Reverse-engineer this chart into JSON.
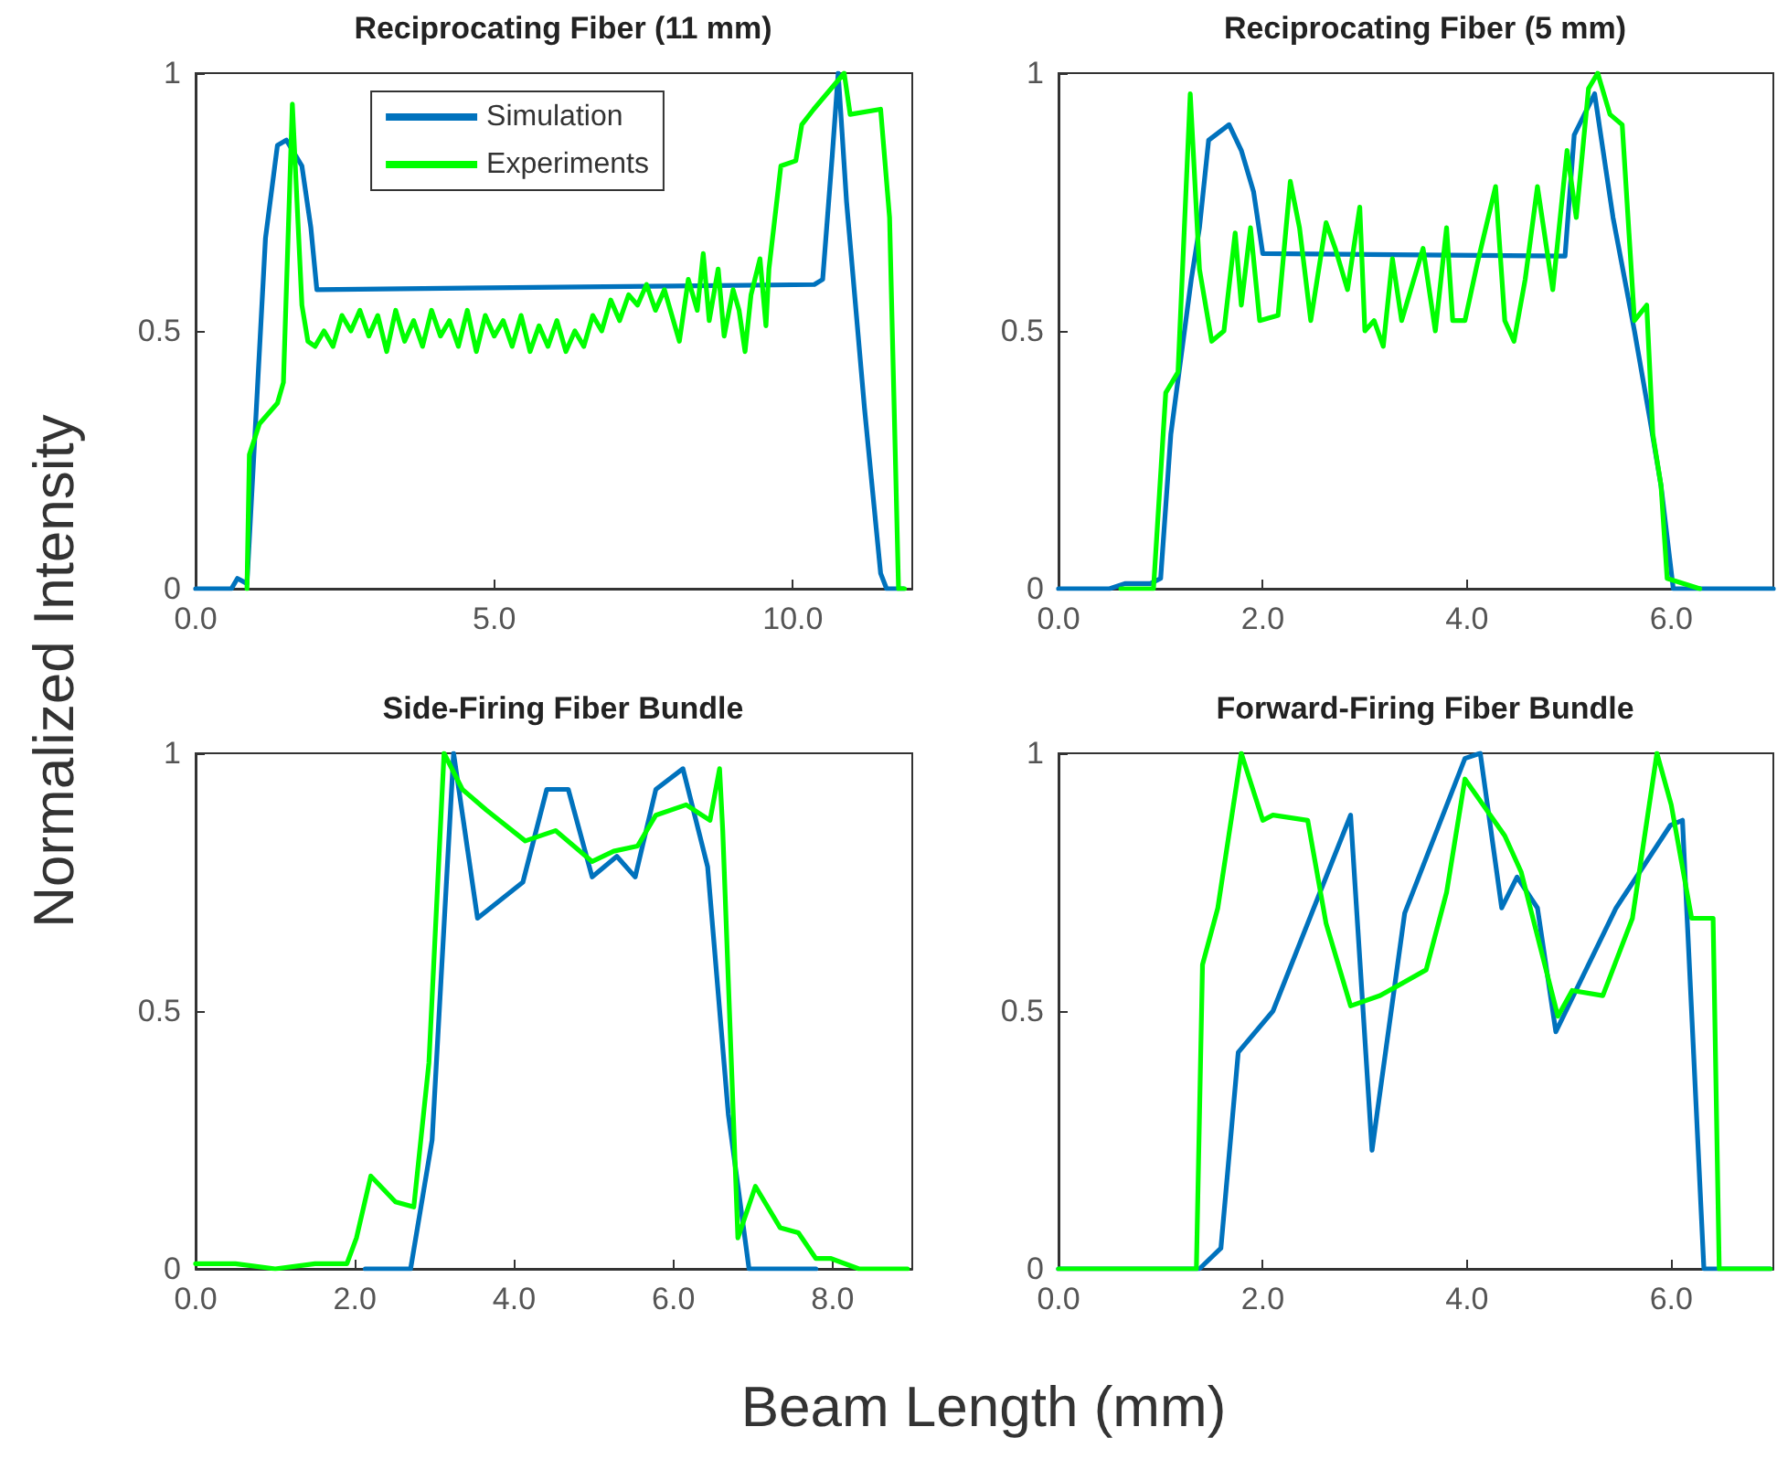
{
  "chart_data": [
    {
      "type": "line",
      "title": "Reciprocating Fiber (11 mm)",
      "ylabel": "Normalized Intensity",
      "xlim": [
        0,
        12
      ],
      "xticks": [
        {
          "value": 0,
          "label": "0.0"
        },
        {
          "value": 5,
          "label": "5.0"
        },
        {
          "value": 10,
          "label": "10.0"
        }
      ],
      "ylim": [
        0,
        1
      ],
      "yticks": [
        0,
        0.5,
        1
      ],
      "grid": false,
      "legend": "top",
      "marker": "none",
      "line_style": "solid",
      "series": [
        {
          "name": "Simulation",
          "color": "#0072bd",
          "x": [
            0,
            0.6,
            0.7,
            0.86,
            1.17,
            1.37,
            1.52,
            1.78,
            1.93,
            2.03,
            10.36,
            10.5,
            10.66,
            10.76,
            10.9,
            11.2,
            11.47,
            11.57,
            11.85
          ],
          "values": [
            0,
            0,
            0.02,
            0.01,
            0.68,
            0.86,
            0.87,
            0.82,
            0.7,
            0.58,
            0.59,
            0.6,
            0.84,
            1,
            0.75,
            0.35,
            0.03,
            0,
            0
          ]
        },
        {
          "name": "Experiments",
          "color": "#00ff00",
          "x": [
            0.86,
            0.9,
            1.07,
            1.37,
            1.47,
            1.62,
            1.78,
            1.88,
            2.0,
            2.15,
            2.3,
            2.45,
            2.6,
            2.75,
            2.9,
            3.05,
            3.2,
            3.35,
            3.5,
            3.65,
            3.8,
            3.95,
            4.1,
            4.25,
            4.4,
            4.55,
            4.7,
            4.85,
            5.0,
            5.15,
            5.3,
            5.45,
            5.6,
            5.75,
            5.9,
            6.05,
            6.2,
            6.35,
            6.5,
            6.65,
            6.8,
            6.95,
            7.1,
            7.25,
            7.4,
            7.55,
            7.7,
            7.85,
            8.0,
            8.1,
            8.25,
            8.4,
            8.5,
            8.6,
            8.75,
            8.85,
            9.0,
            9.1,
            9.2,
            9.3,
            9.45,
            9.55,
            9.6,
            9.8,
            10.05,
            10.15,
            10.35,
            10.86,
            10.96,
            11.47,
            11.62,
            11.77,
            11.87
          ],
          "values": [
            0,
            0.26,
            0.32,
            0.36,
            0.4,
            0.94,
            0.55,
            0.48,
            0.47,
            0.5,
            0.47,
            0.53,
            0.5,
            0.54,
            0.49,
            0.53,
            0.46,
            0.54,
            0.48,
            0.52,
            0.47,
            0.54,
            0.49,
            0.52,
            0.47,
            0.54,
            0.46,
            0.53,
            0.49,
            0.52,
            0.47,
            0.53,
            0.46,
            0.51,
            0.47,
            0.52,
            0.46,
            0.5,
            0.47,
            0.53,
            0.5,
            0.56,
            0.52,
            0.57,
            0.55,
            0.59,
            0.54,
            0.58,
            0.52,
            0.48,
            0.6,
            0.54,
            0.65,
            0.52,
            0.62,
            0.49,
            0.58,
            0.54,
            0.46,
            0.57,
            0.64,
            0.51,
            0.62,
            0.82,
            0.83,
            0.9,
            0.93,
            1,
            0.92,
            0.93,
            0.72,
            0,
            0
          ]
        }
      ]
    },
    {
      "type": "line",
      "title": "Reciprocating Fiber (5 mm)",
      "xlim": [
        0,
        7
      ],
      "xticks": [
        {
          "value": 0,
          "label": "0.0"
        },
        {
          "value": 2,
          "label": "2.0"
        },
        {
          "value": 4,
          "label": "4.0"
        },
        {
          "value": 6,
          "label": "6.0"
        }
      ],
      "ylim": [
        0,
        1
      ],
      "yticks": [
        0,
        0.5,
        1
      ],
      "grid": false,
      "marker": "none",
      "line_style": "solid",
      "series": [
        {
          "color": "#0072bd",
          "x": [
            0,
            0.5,
            0.65,
            0.9,
            1.0,
            1.1,
            1.2,
            1.3,
            1.38,
            1.47,
            1.67,
            1.79,
            1.91,
            2.0,
            4.96,
            5.05,
            5.25,
            5.43,
            5.64,
            5.79,
            5.9,
            6.02,
            7
          ],
          "values": [
            0,
            0,
            0.01,
            0.01,
            0.02,
            0.3,
            0.45,
            0.6,
            0.7,
            0.87,
            0.9,
            0.85,
            0.77,
            0.65,
            0.645,
            0.88,
            0.96,
            0.72,
            0.5,
            0.33,
            0.2,
            0,
            0
          ]
        },
        {
          "color": "#00ff00",
          "x": [
            0.61,
            0.93,
            1.05,
            1.17,
            1.29,
            1.38,
            1.5,
            1.62,
            1.73,
            1.79,
            1.88,
            1.97,
            2.15,
            2.27,
            2.36,
            2.47,
            2.62,
            2.71,
            2.83,
            2.95,
            3.0,
            3.09,
            3.18,
            3.27,
            3.36,
            3.57,
            3.69,
            3.8,
            3.86,
            3.98,
            4.1,
            4.28,
            4.37,
            4.46,
            4.57,
            4.69,
            4.75,
            4.84,
            4.98,
            5.07,
            5.19,
            5.28,
            5.4,
            5.52,
            5.64,
            5.76,
            5.82,
            5.9,
            5.96,
            6.28
          ],
          "values": [
            0,
            0,
            0.38,
            0.42,
            0.96,
            0.62,
            0.48,
            0.5,
            0.69,
            0.55,
            0.7,
            0.52,
            0.53,
            0.79,
            0.7,
            0.52,
            0.71,
            0.66,
            0.58,
            0.74,
            0.5,
            0.52,
            0.47,
            0.64,
            0.52,
            0.66,
            0.5,
            0.7,
            0.52,
            0.52,
            0.63,
            0.78,
            0.52,
            0.48,
            0.6,
            0.78,
            0.7,
            0.58,
            0.85,
            0.72,
            0.97,
            1,
            0.92,
            0.9,
            0.52,
            0.55,
            0.3,
            0.2,
            0.02,
            0
          ]
        }
      ]
    },
    {
      "type": "line",
      "title": "Side-Firing Fiber Bundle",
      "xlabel": "Beam Length (mm)",
      "xlim": [
        0,
        9
      ],
      "xticks": [
        {
          "value": 0,
          "label": "0.0"
        },
        {
          "value": 2,
          "label": "2.0"
        },
        {
          "value": 4,
          "label": "4.0"
        },
        {
          "value": 6,
          "label": "6.0"
        },
        {
          "value": 8,
          "label": "8.0"
        }
      ],
      "ylim": [
        0,
        1
      ],
      "yticks": [
        0,
        0.5,
        1
      ],
      "grid": false,
      "marker": "none",
      "line_style": "solid",
      "series": [
        {
          "color": "#0072bd",
          "x": [
            2.13,
            2.7,
            2.97,
            3.24,
            3.54,
            4.11,
            4.41,
            4.68,
            4.98,
            5.29,
            5.52,
            5.78,
            6.12,
            6.43,
            6.69,
            6.95,
            7.79
          ],
          "values": [
            0,
            0,
            0.25,
            1,
            0.68,
            0.75,
            0.93,
            0.93,
            0.76,
            0.8,
            0.76,
            0.93,
            0.97,
            0.78,
            0.3,
            0,
            0
          ]
        },
        {
          "color": "#00ff00",
          "x": [
            0,
            0.5,
            1.0,
            1.5,
            1.9,
            2.02,
            2.2,
            2.51,
            2.74,
            2.93,
            3.12,
            3.35,
            3.65,
            4.14,
            4.52,
            4.98,
            5.25,
            5.55,
            5.78,
            6.16,
            6.46,
            6.58,
            6.62,
            6.81,
            7.03,
            7.34,
            7.57,
            7.79,
            7.98,
            8.33,
            8.94
          ],
          "values": [
            0.01,
            0.01,
            0,
            0.01,
            0.01,
            0.06,
            0.18,
            0.13,
            0.12,
            0.4,
            1,
            0.93,
            0.89,
            0.83,
            0.85,
            0.79,
            0.81,
            0.82,
            0.88,
            0.9,
            0.87,
            0.97,
            0.85,
            0.06,
            0.16,
            0.08,
            0.07,
            0.02,
            0.02,
            0,
            0
          ]
        }
      ]
    },
    {
      "type": "line",
      "title": "Forward-Firing Fiber Bundle",
      "xlim": [
        0,
        7
      ],
      "xticks": [
        {
          "value": 0,
          "label": "0.0"
        },
        {
          "value": 2,
          "label": "2.0"
        },
        {
          "value": 4,
          "label": "4.0"
        },
        {
          "value": 6,
          "label": "6.0"
        }
      ],
      "ylim": [
        0,
        1
      ],
      "yticks": [
        0,
        0.5,
        1
      ],
      "grid": false,
      "marker": "none",
      "line_style": "solid",
      "series": [
        {
          "color": "#0072bd",
          "x": [
            0,
            1.38,
            1.59,
            1.76,
            2.1,
            2.86,
            3.07,
            3.39,
            3.98,
            4.13,
            4.34,
            4.49,
            4.69,
            4.87,
            5.46,
            5.99,
            6.11,
            6.32,
            6.97
          ],
          "values": [
            0,
            0,
            0.04,
            0.42,
            0.5,
            0.88,
            0.23,
            0.69,
            0.99,
            1,
            0.7,
            0.76,
            0.7,
            0.46,
            0.7,
            0.86,
            0.87,
            0,
            0
          ]
        },
        {
          "color": "#00ff00",
          "x": [
            0,
            1.35,
            1.41,
            1.56,
            1.79,
            2.0,
            2.1,
            2.44,
            2.62,
            2.86,
            3.15,
            3.6,
            3.8,
            3.98,
            4.37,
            4.53,
            4.89,
            5.03,
            5.33,
            5.62,
            5.86,
            6.0,
            6.2,
            6.41,
            6.47,
            6.97
          ],
          "values": [
            0,
            0,
            0.59,
            0.7,
            1,
            0.87,
            0.88,
            0.87,
            0.67,
            0.51,
            0.53,
            0.58,
            0.73,
            0.95,
            0.84,
            0.77,
            0.49,
            0.54,
            0.53,
            0.68,
            1,
            0.9,
            0.68,
            0.68,
            0,
            0
          ]
        }
      ]
    }
  ]
}
